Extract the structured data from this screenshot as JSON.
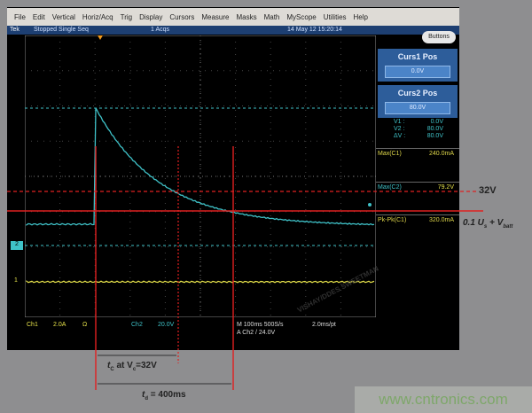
{
  "menu": [
    "File",
    "Edit",
    "Vertical",
    "Horiz/Acq",
    "Trig",
    "Display",
    "Cursors",
    "Measure",
    "Masks",
    "Math",
    "MyScope",
    "Utilities",
    "Help"
  ],
  "status": {
    "brand": "Tek",
    "state": "Stopped  Single Seq",
    "acqs": "1 Acqs",
    "datetime": "14 May 12 15:20:14",
    "buttons_label": "Buttons"
  },
  "panel": {
    "curs1": {
      "label": "Curs1 Pos",
      "value": "0.0V"
    },
    "curs2": {
      "label": "Curs2 Pos",
      "value": "80.0V"
    },
    "readouts": [
      {
        "label": "V1 :",
        "value": "0.0V"
      },
      {
        "label": "V2 :",
        "value": "80.0V"
      },
      {
        "label": "ΔV :",
        "value": "80.0V"
      }
    ],
    "measurements": [
      {
        "label": "Max(C1)",
        "value": "240.0mA"
      },
      {
        "label": "Max(C2)",
        "value": "79.2V"
      },
      {
        "label": "Pk-Pk(C1)",
        "value": "320.0mA"
      }
    ]
  },
  "bottom": {
    "ch1": "Ch1",
    "ch1_scale": "2.0A",
    "ch1_coupling": "Ω",
    "ch2": "Ch2",
    "ch2_scale": "20.0V",
    "timebase": "M 100ms 500S/s",
    "trigger": "A  Ch2  /  24.0V",
    "resolution": "2.0ms/pt"
  },
  "markers": {
    "ch1": "1",
    "ch2": "2"
  },
  "watermark": "VISHAY/DDES SWEETMAN",
  "annotations": {
    "v32": "32V",
    "level_main": "0.1 U",
    "level_sub": "s",
    "level_plus": " + V",
    "level_sub2": "batt",
    "tc_t": "t",
    "tc_sub": "C",
    "tc_rest": " at V",
    "tc_sub2": "c",
    "tc_end": "=32V",
    "td_t": "t",
    "td_sub": "d",
    "td_end": " = 400ms"
  },
  "site": "www.cntronics.com",
  "colors": {
    "ch1": "#e6e24a",
    "ch2": "#3fc2c8",
    "annotation": "#e02020",
    "panel_blue": "#2d5d9a"
  }
}
